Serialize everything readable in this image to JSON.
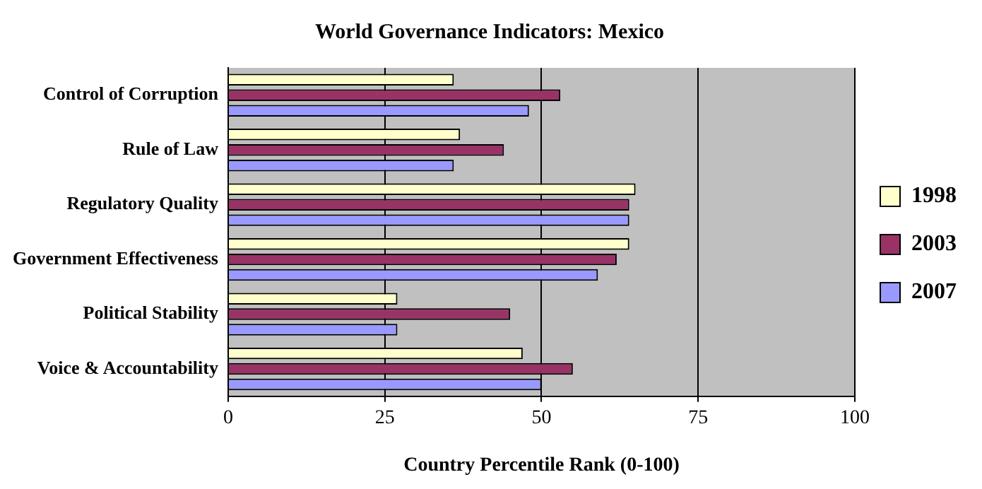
{
  "chart_data": {
    "type": "bar",
    "orientation": "horizontal",
    "title": "World Governance Indicators: Mexico",
    "xlabel": "Country Percentile Rank (0-100)",
    "categories": [
      "Control of Corruption",
      "Rule of Law",
      "Regulatory Quality",
      "Government Effectiveness",
      "Political Stability",
      "Voice & Accountability"
    ],
    "series": [
      {
        "name": "1998",
        "color": "#ffffcc",
        "values": [
          36,
          37,
          65,
          64,
          27,
          47
        ]
      },
      {
        "name": "2003",
        "color": "#993366",
        "values": [
          53,
          44,
          64,
          62,
          45,
          55
        ]
      },
      {
        "name": "2007",
        "color": "#9999ff",
        "values": [
          48,
          36,
          64,
          59,
          27,
          50
        ]
      }
    ],
    "xlim": [
      0,
      100
    ],
    "xticks": [
      0,
      25,
      50,
      75,
      100
    ],
    "grid": "x",
    "legend": "right"
  }
}
